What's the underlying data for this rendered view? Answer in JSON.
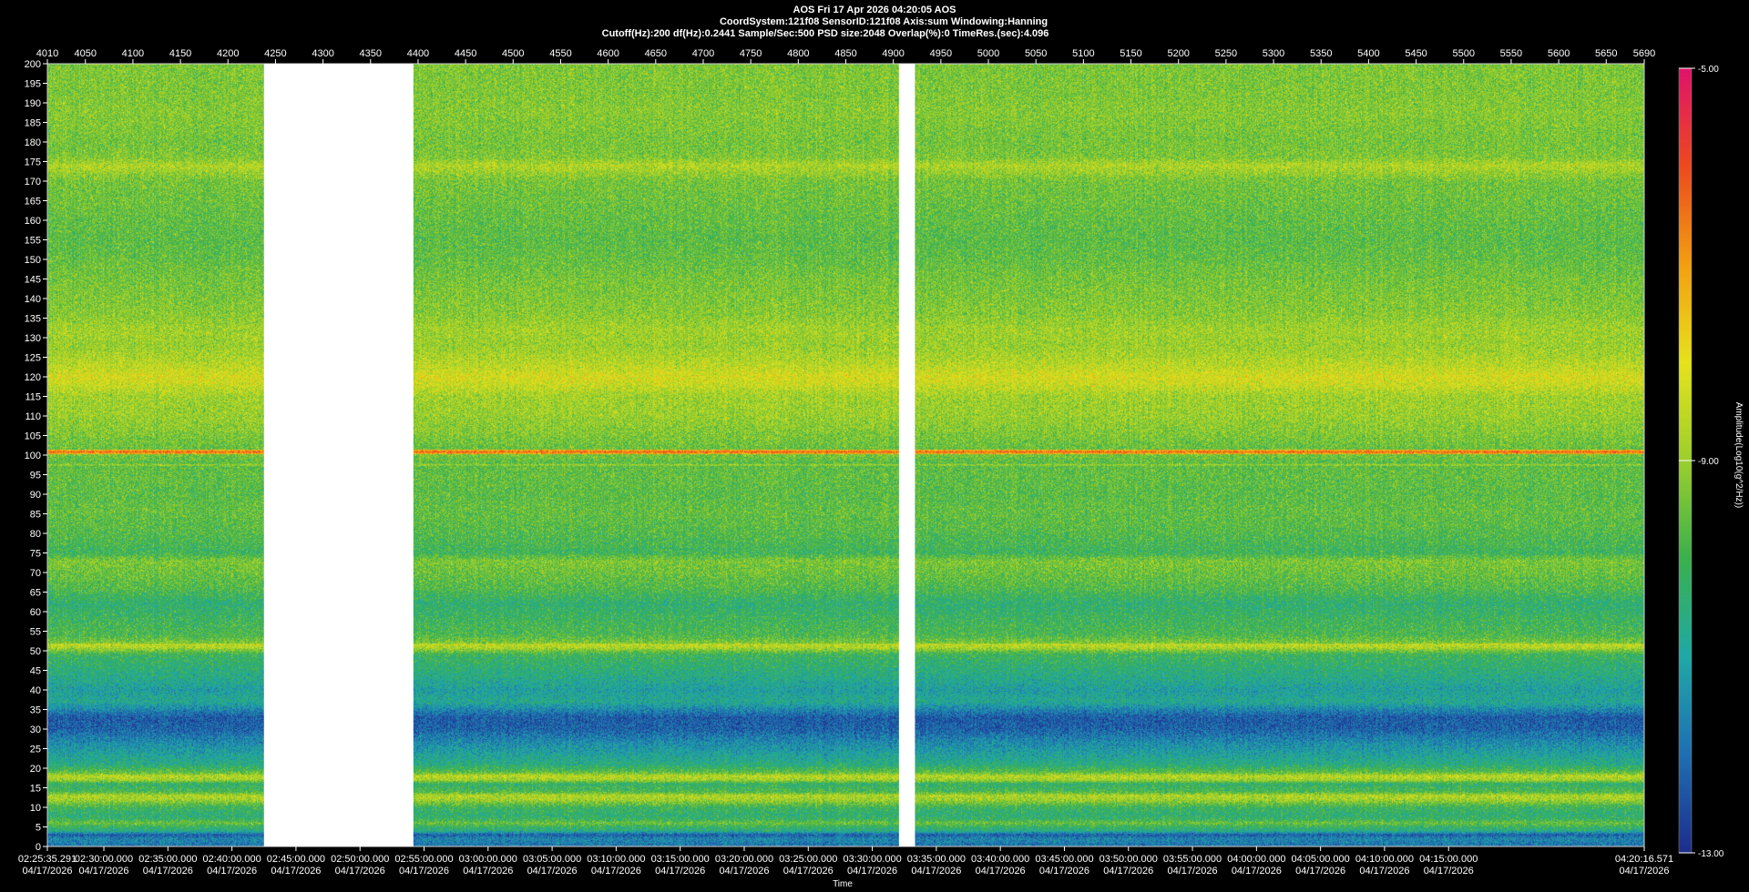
{
  "header": {
    "line1": "AOS  Fri 17 Apr 2026 04:20:05  AOS",
    "line2": "CoordSystem:121f08   SensorID:121f08    Axis:sum    Windowing:Hanning",
    "line3": "Cutoff(Hz):200      df(Hz):0.2441      Sample/Sec:500      PSD size:2048      Overlap(%):0          TimeRes.(sec):4.096"
  },
  "chart_data": {
    "type": "heatmap",
    "title": "AOS  Fri 17 Apr 2026 04:20:05  AOS",
    "xlabel": "Time",
    "ylabel": "",
    "colorbar_label": "Amplitude(Log10(g^2/Hz))",
    "ylim": [
      0,
      200
    ],
    "y_ticks": [
      0,
      5,
      10,
      15,
      20,
      25,
      30,
      35,
      40,
      45,
      50,
      55,
      60,
      65,
      70,
      75,
      80,
      85,
      90,
      95,
      100,
      105,
      110,
      115,
      120,
      125,
      130,
      135,
      140,
      145,
      150,
      155,
      160,
      165,
      170,
      175,
      180,
      185,
      190,
      195,
      200
    ],
    "top_axis": {
      "range": [
        4010,
        5690
      ],
      "ticks": [
        4010,
        4050,
        4100,
        4150,
        4200,
        4250,
        4300,
        4350,
        4400,
        4450,
        4500,
        4550,
        4600,
        4650,
        4700,
        4750,
        4800,
        4850,
        4900,
        4950,
        5000,
        5050,
        5100,
        5150,
        5200,
        5250,
        5300,
        5350,
        5400,
        5450,
        5500,
        5550,
        5600,
        5650,
        5690
      ]
    },
    "time_range_seconds": [
      8135.291,
      15616.571
    ],
    "time_ticks": [
      {
        "t": 8135.291,
        "time": "02:25:35.291",
        "date": "04/17/2026"
      },
      {
        "t": 8400,
        "time": "02:30:00.000",
        "date": "04/17/2026"
      },
      {
        "t": 8700,
        "time": "02:35:00.000",
        "date": "04/17/2026"
      },
      {
        "t": 9000,
        "time": "02:40:00.000",
        "date": "04/17/2026"
      },
      {
        "t": 9300,
        "time": "02:45:00.000",
        "date": "04/17/2026"
      },
      {
        "t": 9600,
        "time": "02:50:00.000",
        "date": "04/17/2026"
      },
      {
        "t": 9900,
        "time": "02:55:00.000",
        "date": "04/17/2026"
      },
      {
        "t": 10200,
        "time": "03:00:00.000",
        "date": "04/17/2026"
      },
      {
        "t": 10500,
        "time": "03:05:00.000",
        "date": "04/17/2026"
      },
      {
        "t": 10800,
        "time": "03:10:00.000",
        "date": "04/17/2026"
      },
      {
        "t": 11100,
        "time": "03:15:00.000",
        "date": "04/17/2026"
      },
      {
        "t": 11400,
        "time": "03:20:00.000",
        "date": "04/17/2026"
      },
      {
        "t": 11700,
        "time": "03:25:00.000",
        "date": "04/17/2026"
      },
      {
        "t": 12000,
        "time": "03:30:00.000",
        "date": "04/17/2026"
      },
      {
        "t": 12300,
        "time": "03:35:00.000",
        "date": "04/17/2026"
      },
      {
        "t": 12600,
        "time": "03:40:00.000",
        "date": "04/17/2026"
      },
      {
        "t": 12900,
        "time": "03:45:00.000",
        "date": "04/17/2026"
      },
      {
        "t": 13200,
        "time": "03:50:00.000",
        "date": "04/17/2026"
      },
      {
        "t": 13500,
        "time": "03:55:00.000",
        "date": "04/17/2026"
      },
      {
        "t": 13800,
        "time": "04:00:00.000",
        "date": "04/17/2026"
      },
      {
        "t": 14100,
        "time": "04:05:00.000",
        "date": "04/17/2026"
      },
      {
        "t": 14400,
        "time": "04:10:00.000",
        "date": "04/17/2026"
      },
      {
        "t": 14700,
        "time": "04:15:00.000",
        "date": "04/17/2026"
      },
      {
        "t": 15616.571,
        "time": "04:20:16.571",
        "date": "04/17/2026"
      }
    ],
    "data_gaps_seconds": [
      [
        9150,
        9850
      ],
      [
        12125,
        12200
      ]
    ],
    "colorbar": {
      "range": [
        -13,
        -5
      ],
      "ticks": [
        {
          "value": -5,
          "label": "-5.00"
        },
        {
          "value": -9,
          "label": "-9.00"
        },
        {
          "value": -13,
          "label": "-13.00"
        }
      ],
      "colors": [
        "#1e2e8c",
        "#1f6fb2",
        "#1fa9a6",
        "#3bb04e",
        "#9ccf2c",
        "#e6e21c",
        "#f2a012",
        "#ec4b1e",
        "#e0146a"
      ]
    },
    "spectral_profile": [
      [
        0,
        -11.9
      ],
      [
        2,
        -11.6
      ],
      [
        3,
        -12.3
      ],
      [
        4,
        -10.6
      ],
      [
        5,
        -10.2
      ],
      [
        6,
        -9.5
      ],
      [
        7,
        -10.2
      ],
      [
        8,
        -10.4
      ],
      [
        10,
        -10.1
      ],
      [
        12,
        -8.9
      ],
      [
        13,
        -8.7
      ],
      [
        14,
        -9.9
      ],
      [
        16,
        -10.3
      ],
      [
        17,
        -8.9
      ],
      [
        18,
        -8.6
      ],
      [
        19,
        -9.7
      ],
      [
        21,
        -10.6
      ],
      [
        24,
        -11.1
      ],
      [
        27,
        -11.6
      ],
      [
        30,
        -12.2
      ],
      [
        33,
        -12.3
      ],
      [
        35,
        -11.6
      ],
      [
        37,
        -10.8
      ],
      [
        40,
        -11.1
      ],
      [
        43,
        -10.7
      ],
      [
        46,
        -10.4
      ],
      [
        49,
        -10.1
      ],
      [
        50,
        -9.4
      ],
      [
        51,
        -8.6
      ],
      [
        52,
        -9.3
      ],
      [
        54,
        -9.9
      ],
      [
        58,
        -10.1
      ],
      [
        62,
        -10.4
      ],
      [
        66,
        -9.8
      ],
      [
        70,
        -9.5
      ],
      [
        73,
        -9.3
      ],
      [
        75,
        -10.1
      ],
      [
        78,
        -9.9
      ],
      [
        82,
        -9.7
      ],
      [
        86,
        -9.6
      ],
      [
        90,
        -9.7
      ],
      [
        95,
        -9.6
      ],
      [
        98,
        -9.7
      ],
      [
        100,
        -9.4
      ],
      [
        101,
        -9.6
      ],
      [
        105,
        -9.3
      ],
      [
        110,
        -9.0
      ],
      [
        115,
        -8.9
      ],
      [
        118,
        -8.4
      ],
      [
        120,
        -8.2
      ],
      [
        122,
        -8.5
      ],
      [
        125,
        -8.8
      ],
      [
        128,
        -9.0
      ],
      [
        132,
        -8.9
      ],
      [
        136,
        -9.2
      ],
      [
        140,
        -9.3
      ],
      [
        145,
        -9.4
      ],
      [
        150,
        -9.6
      ],
      [
        155,
        -9.7
      ],
      [
        160,
        -9.6
      ],
      [
        165,
        -9.5
      ],
      [
        170,
        -9.4
      ],
      [
        174,
        -8.7
      ],
      [
        176,
        -9.3
      ],
      [
        180,
        -9.4
      ],
      [
        184,
        -9.3
      ],
      [
        188,
        -9.2
      ],
      [
        192,
        -9.3
      ],
      [
        196,
        -9.3
      ],
      [
        200,
        -9.3
      ]
    ],
    "tonal_lines": [
      {
        "hz": 100.8,
        "value": -6.3
      },
      {
        "hz": 51.5,
        "value": -8.3
      },
      {
        "hz": 97.5,
        "value": -8.9
      },
      {
        "hz": 18.2,
        "value": -8.8
      },
      {
        "hz": 12.8,
        "value": -8.7
      },
      {
        "hz": 174.2,
        "value": -8.7
      }
    ]
  }
}
